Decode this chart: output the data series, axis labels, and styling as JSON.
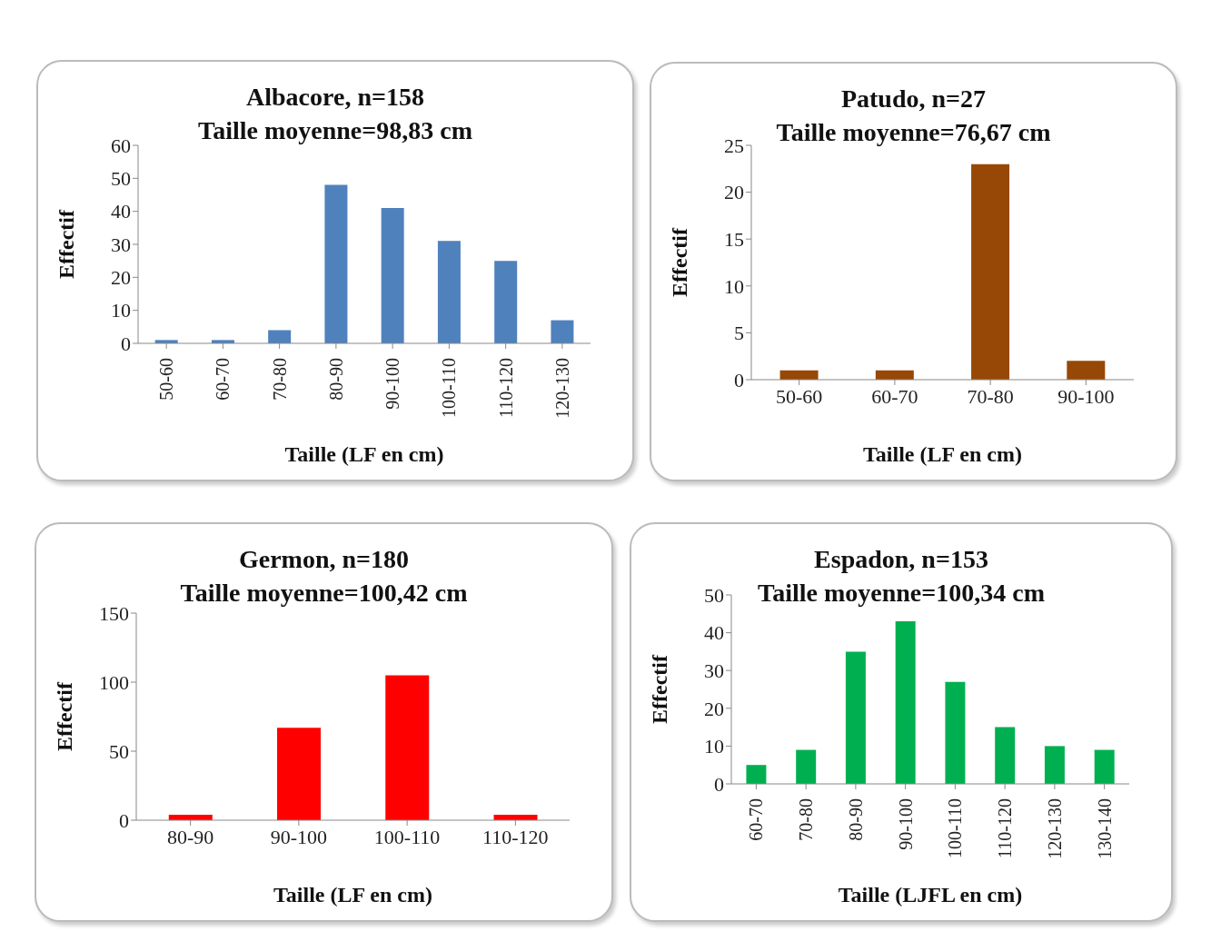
{
  "chart_data": [
    {
      "type": "bar",
      "title": "Albacore, n=158",
      "subtitle": "Taille moyenne=98,83 cm",
      "xlabel": "Taille (LF en cm)",
      "ylabel": "Effectif",
      "categories": [
        "50-60",
        "60-70",
        "70-80",
        "80-90",
        "90-100",
        "100-110",
        "110-120",
        "120-130"
      ],
      "values": [
        1,
        1,
        4,
        48,
        41,
        31,
        25,
        7
      ],
      "color": "#4f81bd",
      "ylim": [
        0,
        60
      ],
      "yticks": [
        0,
        10,
        20,
        30,
        40,
        50,
        60
      ],
      "grid": false,
      "legend": false
    },
    {
      "type": "bar",
      "title": "Patudo, n=27",
      "subtitle": "Taille moyenne=76,67 cm",
      "xlabel": "Taille (LF en cm)",
      "ylabel": "Effectif",
      "categories": [
        "50-60",
        "60-70",
        "70-80",
        "90-100"
      ],
      "values": [
        1,
        1,
        23,
        2
      ],
      "color": "#974806",
      "ylim": [
        0,
        25
      ],
      "yticks": [
        0,
        5,
        10,
        15,
        20,
        25
      ],
      "grid": false,
      "legend": false
    },
    {
      "type": "bar",
      "title": "Germon, n=180",
      "subtitle": "Taille moyenne=100,42 cm",
      "xlabel": "Taille (LF en cm)",
      "ylabel": "Effectif",
      "categories": [
        "80-90",
        "90-100",
        "100-110",
        "110-120"
      ],
      "values": [
        4,
        67,
        105,
        4
      ],
      "color": "#ff0000",
      "ylim": [
        0,
        150
      ],
      "yticks": [
        0,
        50,
        100,
        150
      ],
      "grid": false,
      "legend": false
    },
    {
      "type": "bar",
      "title": "Espadon, n=153",
      "subtitle": "Taille moyenne=100,34 cm",
      "xlabel": "Taille (LJFL en cm)",
      "ylabel": "Effectif",
      "categories": [
        "60-70",
        "70-80",
        "80-90",
        "90-100",
        "100-110",
        "110-120",
        "120-130",
        "130-140"
      ],
      "values": [
        5,
        9,
        35,
        43,
        27,
        15,
        10,
        9
      ],
      "color": "#00b050",
      "ylim": [
        0,
        50
      ],
      "yticks": [
        0,
        10,
        20,
        30,
        40,
        50
      ],
      "grid": false,
      "legend": false
    }
  ]
}
